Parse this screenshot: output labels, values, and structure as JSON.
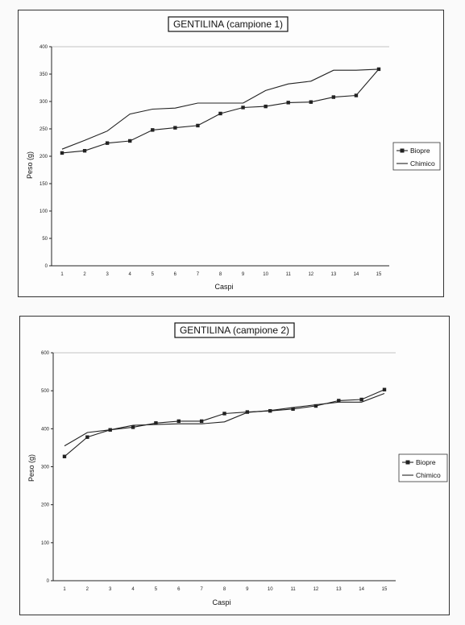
{
  "colors": {
    "line": "#222222",
    "axis": "#222222",
    "background": "#fdfdfd"
  },
  "chart_data": [
    {
      "type": "line",
      "title": "GENTILINA (campione 1)",
      "xlabel": "Caspi",
      "ylabel": "Peso (g)",
      "ylim": [
        0,
        400
      ],
      "yticks": [
        0,
        50,
        100,
        150,
        200,
        250,
        300,
        350,
        400
      ],
      "categories": [
        "1",
        "2",
        "3",
        "4",
        "5",
        "6",
        "7",
        "8",
        "9",
        "10",
        "11",
        "12",
        "13",
        "14",
        "15"
      ],
      "legend_position": "right",
      "grid": "horizontal-top",
      "series": [
        {
          "name": "Biopre",
          "marker": "square",
          "values": [
            206,
            210,
            224,
            228,
            248,
            252,
            256,
            278,
            289,
            291,
            298,
            299,
            308,
            311,
            359
          ]
        },
        {
          "name": "Chimico",
          "marker": "none",
          "values": [
            213,
            229,
            246,
            277,
            286,
            288,
            297,
            297,
            297,
            320,
            332,
            337,
            357,
            357,
            359
          ]
        }
      ]
    },
    {
      "type": "line",
      "title": "GENTILINA (campione 2)",
      "xlabel": "Caspi",
      "ylabel": "Peso (g)",
      "ylim": [
        0,
        600
      ],
      "yticks": [
        0,
        100,
        200,
        300,
        400,
        500,
        600
      ],
      "categories": [
        "1",
        "2",
        "3",
        "4",
        "5",
        "6",
        "7",
        "8",
        "9",
        "10",
        "11",
        "12",
        "13",
        "14",
        "15"
      ],
      "legend_position": "right",
      "grid": "horizontal-top",
      "series": [
        {
          "name": "Biopre",
          "marker": "square",
          "values": [
            327,
            378,
            397,
            404,
            415,
            420,
            420,
            440,
            444,
            447,
            452,
            460,
            474,
            477,
            503
          ]
        },
        {
          "name": "Chimico",
          "marker": "none",
          "values": [
            355,
            390,
            397,
            409,
            411,
            413,
            413,
            418,
            443,
            448,
            456,
            463,
            470,
            470,
            493
          ]
        }
      ]
    }
  ]
}
